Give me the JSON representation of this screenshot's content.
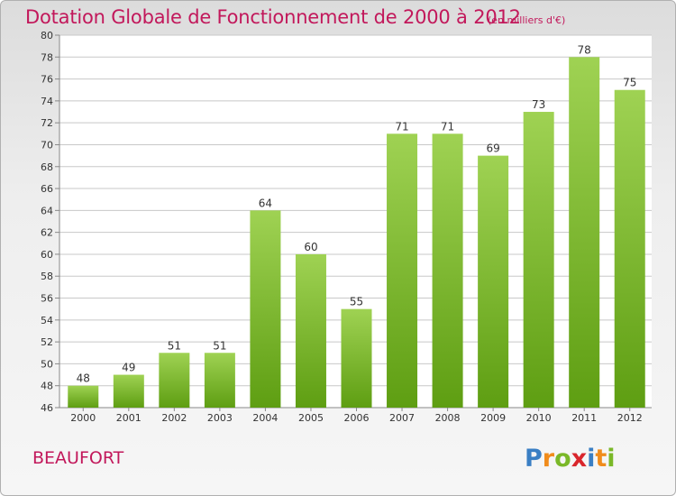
{
  "header": {
    "title": "Dotation Globale de Fonctionnement de 2000 à 2012",
    "subtitle": "(en milliers d'€)"
  },
  "footer": {
    "location": "BEAUFORT",
    "brand": "Proxiti"
  },
  "colors": {
    "title": "#c2185b",
    "bar_light": "#9acd4a",
    "bar_dark": "#5e9e12",
    "grid": "#c8c8c8"
  },
  "chart_data": {
    "type": "bar",
    "categories": [
      "2000",
      "2001",
      "2002",
      "2003",
      "2004",
      "2005",
      "2006",
      "2007",
      "2008",
      "2009",
      "2010",
      "2011",
      "2012"
    ],
    "values": [
      48,
      49,
      51,
      51,
      64,
      60,
      55,
      71,
      71,
      69,
      73,
      78,
      75
    ],
    "ylim": [
      46,
      80
    ],
    "yticks": [
      46,
      48,
      50,
      52,
      54,
      56,
      58,
      60,
      62,
      64,
      66,
      68,
      70,
      72,
      74,
      76,
      78,
      80
    ],
    "grid": true,
    "legend": "none"
  }
}
